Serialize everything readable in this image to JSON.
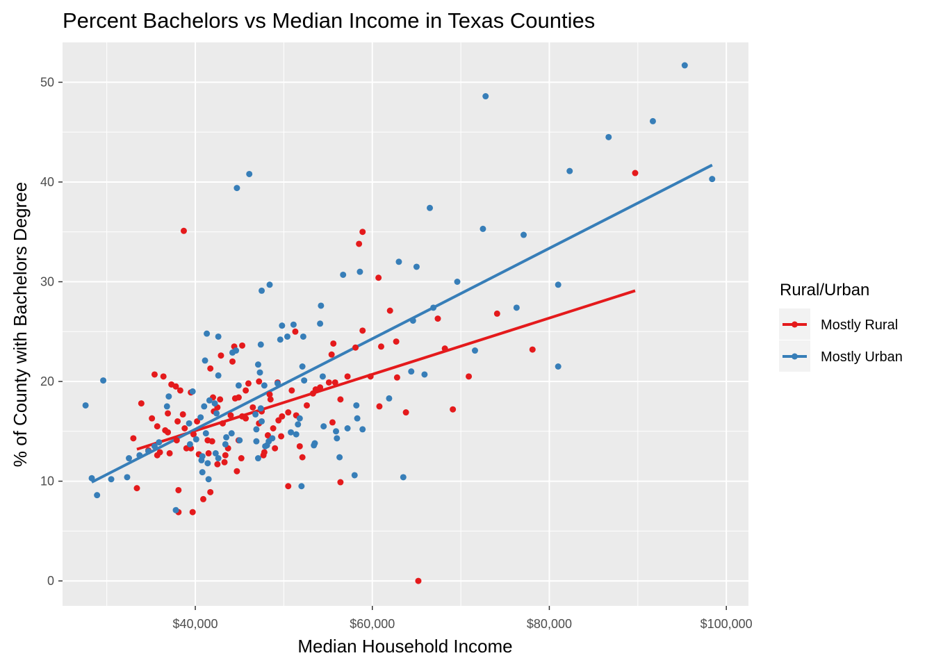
{
  "chart_data": {
    "type": "scatter",
    "title": "Percent Bachelors vs Median Income in Texas Counties",
    "xlabel": "Median Household Income",
    "ylabel": "% of County with Bachelors Degree",
    "xlim": [
      25000,
      102500
    ],
    "ylim": [
      -2.5,
      54
    ],
    "x_ticks": [
      40000,
      60000,
      80000,
      100000
    ],
    "x_tick_labels": [
      "$40,000",
      "$60,000",
      "$80,000",
      "$100,000"
    ],
    "y_ticks": [
      0,
      10,
      20,
      30,
      40,
      50
    ],
    "y_tick_labels": [
      "0",
      "10",
      "20",
      "30",
      "40",
      "50"
    ],
    "grid": true,
    "legend": {
      "title": "Rural/Urban",
      "placement": "right"
    },
    "series": [
      {
        "name": "Mostly Rural",
        "color": "#E41A1C",
        "trend": [
          [
            33400,
            13.2
          ],
          [
            89700,
            29.1
          ]
        ],
        "points": [
          [
            38700,
            35.1
          ],
          [
            58500,
            33.8
          ],
          [
            58900,
            35.0
          ],
          [
            60700,
            30.4
          ],
          [
            62000,
            27.1
          ],
          [
            89700,
            40.9
          ],
          [
            74100,
            26.8
          ],
          [
            67400,
            26.3
          ],
          [
            78100,
            23.2
          ],
          [
            70900,
            20.5
          ],
          [
            68200,
            23.3
          ],
          [
            69100,
            17.2
          ],
          [
            65200,
            0.0
          ],
          [
            63800,
            16.9
          ],
          [
            62700,
            24.0
          ],
          [
            62800,
            20.4
          ],
          [
            61000,
            23.5
          ],
          [
            60800,
            17.5
          ],
          [
            59800,
            20.5
          ],
          [
            58900,
            25.1
          ],
          [
            58100,
            23.4
          ],
          [
            57200,
            20.5
          ],
          [
            56400,
            18.2
          ],
          [
            56400,
            9.9
          ],
          [
            55800,
            19.9
          ],
          [
            55600,
            23.8
          ],
          [
            55400,
            22.7
          ],
          [
            55500,
            15.9
          ],
          [
            55100,
            19.9
          ],
          [
            54100,
            19.4
          ],
          [
            53600,
            19.2
          ],
          [
            53300,
            18.8
          ],
          [
            52600,
            17.6
          ],
          [
            52100,
            12.4
          ],
          [
            51800,
            13.5
          ],
          [
            51400,
            16.6
          ],
          [
            51300,
            25.0
          ],
          [
            50900,
            19.1
          ],
          [
            50500,
            16.9
          ],
          [
            50500,
            9.5
          ],
          [
            49700,
            14.5
          ],
          [
            49800,
            16.5
          ],
          [
            49400,
            16.1
          ],
          [
            49300,
            19.9
          ],
          [
            49000,
            13.3
          ],
          [
            48800,
            15.3
          ],
          [
            48500,
            18.2
          ],
          [
            48400,
            18.7
          ],
          [
            48200,
            14.6
          ],
          [
            47800,
            12.9
          ],
          [
            47700,
            12.6
          ],
          [
            47500,
            17.0
          ],
          [
            47200,
            20.0
          ],
          [
            47200,
            15.8
          ],
          [
            46500,
            17.4
          ],
          [
            46000,
            19.8
          ],
          [
            45700,
            19.1
          ],
          [
            45700,
            16.3
          ],
          [
            45300,
            16.5
          ],
          [
            45300,
            23.6
          ],
          [
            45200,
            12.3
          ],
          [
            44900,
            18.4
          ],
          [
            44900,
            14.1
          ],
          [
            44700,
            11.0
          ],
          [
            44500,
            18.3
          ],
          [
            44400,
            23.5
          ],
          [
            44200,
            22.0
          ],
          [
            44000,
            16.6
          ],
          [
            43700,
            13.3
          ],
          [
            43400,
            12.6
          ],
          [
            43300,
            11.9
          ],
          [
            43100,
            15.8
          ],
          [
            42900,
            22.6
          ],
          [
            42800,
            18.2
          ],
          [
            42500,
            17.4
          ],
          [
            42500,
            11.7
          ],
          [
            42100,
            17.0
          ],
          [
            42000,
            18.4
          ],
          [
            41900,
            14.0
          ],
          [
            41700,
            8.9
          ],
          [
            41700,
            21.3
          ],
          [
            41500,
            12.8
          ],
          [
            41400,
            14.1
          ],
          [
            40900,
            8.2
          ],
          [
            40400,
            12.7
          ],
          [
            40200,
            16.0
          ],
          [
            39800,
            14.7
          ],
          [
            39500,
            13.3
          ],
          [
            39700,
            6.9
          ],
          [
            39500,
            18.9
          ],
          [
            39000,
            13.3
          ],
          [
            38800,
            15.3
          ],
          [
            38600,
            16.7
          ],
          [
            38300,
            19.1
          ],
          [
            38100,
            9.1
          ],
          [
            38100,
            6.9
          ],
          [
            38000,
            16.0
          ],
          [
            37900,
            14.1
          ],
          [
            37800,
            19.5
          ],
          [
            37300,
            19.7
          ],
          [
            37100,
            12.8
          ],
          [
            36900,
            14.9
          ],
          [
            36900,
            16.8
          ],
          [
            36600,
            15.1
          ],
          [
            36400,
            20.5
          ],
          [
            36000,
            12.9
          ],
          [
            35700,
            15.5
          ],
          [
            35700,
            12.6
          ],
          [
            35400,
            20.7
          ],
          [
            35100,
            16.3
          ],
          [
            34700,
            13.1
          ],
          [
            33900,
            17.8
          ],
          [
            33400,
            9.3
          ],
          [
            33000,
            14.3
          ]
        ]
      },
      {
        "name": "Mostly Urban",
        "color": "#377EB8",
        "trend": [
          [
            28300,
            9.9
          ],
          [
            98400,
            41.7
          ]
        ],
        "points": [
          [
            95300,
            51.7
          ],
          [
            72800,
            48.6
          ],
          [
            91700,
            46.1
          ],
          [
            86700,
            44.5
          ],
          [
            82300,
            41.1
          ],
          [
            98400,
            40.3
          ],
          [
            66500,
            37.4
          ],
          [
            72500,
            35.3
          ],
          [
            77100,
            34.7
          ],
          [
            63000,
            32.0
          ],
          [
            65000,
            31.5
          ],
          [
            56700,
            30.7
          ],
          [
            58600,
            31.0
          ],
          [
            69600,
            30.0
          ],
          [
            81000,
            29.7
          ],
          [
            76300,
            27.4
          ],
          [
            66900,
            27.4
          ],
          [
            64600,
            26.1
          ],
          [
            71600,
            23.1
          ],
          [
            81000,
            21.5
          ],
          [
            64400,
            21.0
          ],
          [
            65900,
            20.7
          ],
          [
            61900,
            18.3
          ],
          [
            58200,
            17.6
          ],
          [
            58900,
            15.2
          ],
          [
            58300,
            16.3
          ],
          [
            55900,
            15.0
          ],
          [
            56000,
            14.3
          ],
          [
            57200,
            15.3
          ],
          [
            56300,
            12.4
          ],
          [
            58000,
            10.6
          ],
          [
            63500,
            10.4
          ],
          [
            54200,
            27.6
          ],
          [
            54100,
            25.8
          ],
          [
            54400,
            20.5
          ],
          [
            54500,
            15.5
          ],
          [
            53400,
            13.6
          ],
          [
            53500,
            13.8
          ],
          [
            52200,
            24.5
          ],
          [
            52100,
            21.5
          ],
          [
            52300,
            20.1
          ],
          [
            51800,
            16.3
          ],
          [
            51600,
            15.7
          ],
          [
            51400,
            14.7
          ],
          [
            52000,
            9.5
          ],
          [
            51100,
            25.7
          ],
          [
            50400,
            24.5
          ],
          [
            49600,
            24.2
          ],
          [
            49800,
            25.6
          ],
          [
            50800,
            14.9
          ],
          [
            49300,
            19.8
          ],
          [
            48700,
            14.3
          ],
          [
            48300,
            14.0
          ],
          [
            48100,
            13.6
          ],
          [
            47900,
            13.5
          ],
          [
            48400,
            29.7
          ],
          [
            47500,
            29.1
          ],
          [
            47400,
            23.7
          ],
          [
            47300,
            20.9
          ],
          [
            47100,
            21.7
          ],
          [
            47400,
            17.3
          ],
          [
            47800,
            19.6
          ],
          [
            47500,
            16.0
          ],
          [
            46900,
            15.2
          ],
          [
            46900,
            14.0
          ],
          [
            47100,
            12.3
          ],
          [
            46800,
            16.7
          ],
          [
            46100,
            40.8
          ],
          [
            44700,
            39.4
          ],
          [
            44600,
            23.1
          ],
          [
            44200,
            22.9
          ],
          [
            44900,
            19.6
          ],
          [
            45000,
            14.1
          ],
          [
            44100,
            14.8
          ],
          [
            43400,
            13.7
          ],
          [
            43500,
            14.4
          ],
          [
            42600,
            24.5
          ],
          [
            42600,
            20.6
          ],
          [
            42400,
            16.8
          ],
          [
            42300,
            12.8
          ],
          [
            42600,
            12.3
          ],
          [
            42200,
            17.8
          ],
          [
            41600,
            18.1
          ],
          [
            41300,
            24.8
          ],
          [
            41100,
            22.1
          ],
          [
            41000,
            17.5
          ],
          [
            41200,
            14.8
          ],
          [
            40800,
            12.5
          ],
          [
            40600,
            16.4
          ],
          [
            40700,
            12.1
          ],
          [
            41400,
            11.8
          ],
          [
            40800,
            10.9
          ],
          [
            41500,
            10.2
          ],
          [
            39700,
            19.0
          ],
          [
            39300,
            15.8
          ],
          [
            40100,
            14.2
          ],
          [
            39400,
            13.7
          ],
          [
            37800,
            7.1
          ],
          [
            37000,
            18.5
          ],
          [
            36800,
            17.5
          ],
          [
            35900,
            13.9
          ],
          [
            35400,
            13.5
          ],
          [
            34700,
            13.0
          ],
          [
            33700,
            12.6
          ],
          [
            32500,
            12.3
          ],
          [
            32300,
            10.4
          ],
          [
            30500,
            10.2
          ],
          [
            29600,
            20.1
          ],
          [
            28300,
            10.3
          ],
          [
            28900,
            8.6
          ],
          [
            27600,
            17.6
          ]
        ]
      }
    ]
  }
}
